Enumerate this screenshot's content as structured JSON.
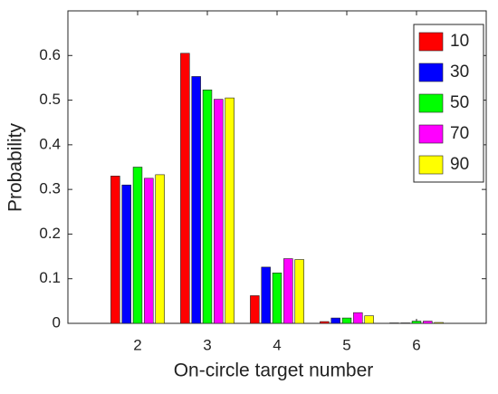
{
  "chart_data": {
    "type": "bar",
    "xlabel": "On-circle target number",
    "ylabel": "Probability",
    "x": [
      2,
      3,
      4,
      5,
      6
    ],
    "xlim": [
      1,
      7
    ],
    "xticks": [
      2,
      3,
      4,
      5,
      6
    ],
    "ylim": [
      0,
      0.7
    ],
    "yticks": [
      0,
      0.1,
      0.2,
      0.3,
      0.4,
      0.5,
      0.6
    ],
    "legend_position": "top-right",
    "series": [
      {
        "name": "10",
        "color": "#ff0000",
        "values": [
          0.33,
          0.605,
          0.062,
          0.004,
          0.001
        ]
      },
      {
        "name": "30",
        "color": "#0000ff",
        "values": [
          0.31,
          0.553,
          0.126,
          0.012,
          0.001
        ]
      },
      {
        "name": "50",
        "color": "#00ff00",
        "values": [
          0.35,
          0.523,
          0.113,
          0.012,
          0.005
        ]
      },
      {
        "name": "70",
        "color": "#ff00ff",
        "values": [
          0.325,
          0.502,
          0.145,
          0.024,
          0.005
        ]
      },
      {
        "name": "90",
        "color": "#ffff00",
        "values": [
          0.333,
          0.505,
          0.143,
          0.017,
          0.002
        ]
      }
    ]
  }
}
